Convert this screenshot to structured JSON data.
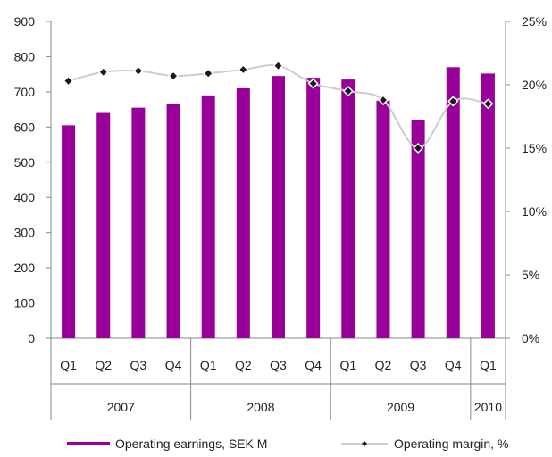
{
  "chart_data": {
    "type": "bar",
    "categories": [
      "Q1",
      "Q2",
      "Q3",
      "Q4",
      "Q1",
      "Q2",
      "Q3",
      "Q4",
      "Q1",
      "Q2",
      "Q3",
      "Q4",
      "Q1"
    ],
    "year_groups": [
      {
        "label": "2007",
        "count": 4
      },
      {
        "label": "2008",
        "count": 4
      },
      {
        "label": "2009",
        "count": 4
      },
      {
        "label": "2010",
        "count": 1
      }
    ],
    "series": [
      {
        "name": "Operating earnings, SEK M",
        "type": "bar",
        "axis": "left",
        "values": [
          605,
          640,
          655,
          665,
          690,
          710,
          745,
          740,
          735,
          675,
          620,
          770,
          752
        ]
      },
      {
        "name": "Operating margin, %",
        "type": "line",
        "axis": "right",
        "values": [
          20.3,
          21.0,
          21.1,
          20.7,
          20.9,
          21.2,
          21.5,
          20.1,
          19.5,
          18.8,
          15.0,
          18.7,
          18.5
        ]
      }
    ],
    "ylim_left": [
      0,
      900
    ],
    "yticks_left": [
      "0",
      "100",
      "200",
      "300",
      "400",
      "500",
      "600",
      "700",
      "800",
      "900"
    ],
    "ylim_right": [
      0,
      25
    ],
    "yticks_right": [
      "0%",
      "5%",
      "10%",
      "15%",
      "20%",
      "25%"
    ],
    "colors": {
      "bar": "#990099",
      "line": "#cccccc",
      "marker": "#1a1a1a",
      "axis": "#888888"
    },
    "legend_position": "bottom",
    "grid": false
  },
  "legend": {
    "bar_label": "Operating earnings, SEK M",
    "line_label": "Operating margin, %"
  }
}
